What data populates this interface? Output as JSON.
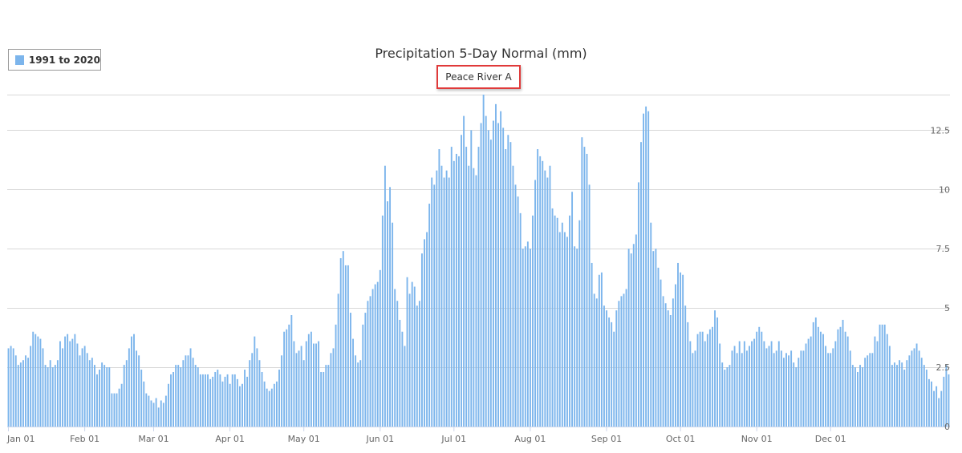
{
  "chart_data": {
    "type": "bar",
    "title": "Precipitation 5-Day Normal (mm)",
    "subtitle": "Peace River A",
    "legend": {
      "position": "top-left",
      "entries": [
        "1991 to 2020"
      ]
    },
    "xlabel": "",
    "ylabel": "",
    "grid": true,
    "ylim": [
      0,
      14
    ],
    "yticks": [
      0,
      2.5,
      5,
      7.5,
      10,
      12.5
    ],
    "ytick_labels": [
      "0",
      "2.5",
      "5",
      "7.5",
      "10",
      "12.5"
    ],
    "xticks": [
      "Jan 01",
      "Feb 01",
      "Mar 01",
      "Apr 01",
      "May 01",
      "Jun 01",
      "Jul 01",
      "Aug 01",
      "Sep 01",
      "Oct 01",
      "Nov 01",
      "Dec 01"
    ],
    "series": [
      {
        "name": "1991 to 2020",
        "color": "#7cb5ec",
        "values": [
          3.3,
          3.4,
          3.3,
          3.0,
          2.6,
          2.7,
          2.8,
          3.0,
          2.9,
          3.4,
          4.0,
          3.9,
          3.8,
          3.7,
          3.3,
          2.6,
          2.5,
          2.8,
          2.5,
          2.6,
          2.8,
          3.6,
          3.3,
          3.8,
          3.9,
          3.6,
          3.7,
          3.9,
          3.5,
          3.0,
          3.3,
          3.4,
          3.1,
          2.8,
          2.9,
          2.6,
          2.2,
          2.4,
          2.7,
          2.6,
          2.5,
          2.5,
          1.4,
          1.4,
          1.4,
          1.6,
          1.8,
          2.6,
          2.8,
          3.3,
          3.8,
          3.9,
          3.2,
          3.0,
          2.4,
          1.9,
          1.4,
          1.3,
          1.1,
          1.0,
          1.2,
          0.8,
          1.1,
          1.0,
          1.3,
          1.8,
          2.2,
          2.3,
          2.6,
          2.6,
          2.5,
          2.8,
          3.0,
          3.0,
          3.3,
          2.9,
          2.6,
          2.5,
          2.2,
          2.2,
          2.2,
          2.2,
          2.0,
          2.1,
          2.3,
          2.4,
          2.2,
          1.9,
          2.1,
          2.2,
          1.8,
          2.2,
          2.2,
          2.0,
          1.7,
          1.8,
          2.4,
          2.1,
          2.8,
          3.1,
          3.8,
          3.3,
          2.8,
          2.3,
          1.9,
          1.6,
          1.5,
          1.6,
          1.8,
          1.9,
          2.4,
          3.0,
          4.0,
          4.1,
          4.3,
          4.7,
          3.6,
          3.1,
          3.2,
          3.4,
          2.8,
          3.6,
          3.9,
          4.0,
          3.5,
          3.5,
          3.6,
          2.3,
          2.3,
          2.6,
          2.6,
          3.1,
          3.3,
          4.3,
          5.6,
          7.1,
          7.4,
          6.8,
          6.8,
          4.8,
          3.7,
          3.0,
          2.7,
          2.8,
          4.3,
          4.8,
          5.3,
          5.5,
          5.8,
          6.0,
          6.1,
          6.6,
          8.9,
          11.0,
          9.5,
          10.1,
          8.6,
          5.8,
          5.3,
          4.5,
          4.0,
          3.4,
          6.3,
          5.6,
          6.1,
          5.9,
          5.1,
          5.3,
          7.3,
          7.9,
          8.2,
          9.4,
          10.5,
          10.2,
          10.8,
          11.7,
          11.0,
          10.5,
          10.8,
          10.5,
          11.8,
          11.2,
          11.5,
          11.4,
          12.3,
          13.1,
          11.8,
          11.0,
          12.5,
          10.9,
          10.6,
          11.8,
          12.8,
          14.0,
          13.1,
          12.5,
          12.1,
          12.9,
          13.6,
          12.8,
          13.3,
          12.6,
          11.7,
          12.3,
          12.0,
          11.0,
          10.2,
          9.7,
          9.0,
          7.5,
          7.6,
          7.8,
          7.5,
          8.9,
          10.4,
          11.7,
          11.4,
          11.2,
          10.8,
          10.5,
          11.0,
          9.2,
          8.9,
          8.8,
          8.2,
          8.6,
          8.2,
          8.0,
          8.9,
          9.9,
          7.6,
          7.5,
          8.7,
          12.2,
          11.8,
          11.5,
          10.2,
          6.9,
          5.6,
          5.4,
          6.4,
          6.5,
          5.1,
          4.9,
          4.6,
          4.4,
          4.0,
          4.9,
          5.3,
          5.5,
          5.6,
          5.8,
          7.5,
          7.3,
          7.7,
          8.1,
          10.3,
          12.0,
          13.2,
          13.5,
          13.3,
          8.6,
          7.4,
          7.5,
          6.7,
          6.2,
          5.5,
          5.2,
          4.9,
          4.7,
          5.4,
          6.0,
          6.9,
          6.5,
          6.4,
          5.1,
          4.4,
          3.6,
          3.1,
          3.2,
          3.9,
          4.0,
          4.0,
          3.6,
          3.9,
          4.1,
          4.2,
          4.9,
          4.6,
          3.5,
          2.7,
          2.4,
          2.5,
          2.6,
          3.2,
          3.4,
          3.1,
          3.6,
          3.1,
          3.6,
          3.2,
          3.4,
          3.6,
          3.7,
          4.0,
          4.2,
          4.0,
          3.6,
          3.3,
          3.4,
          3.6,
          3.1,
          3.2,
          3.6,
          3.2,
          2.9,
          3.1,
          3.0,
          3.2,
          2.7,
          2.5,
          2.9,
          3.2,
          3.2,
          3.5,
          3.7,
          3.8,
          4.4,
          4.6,
          4.2,
          4.0,
          3.9,
          3.4,
          3.1,
          3.1,
          3.3,
          3.6,
          4.1,
          4.2,
          4.5,
          4.0,
          3.8,
          3.2,
          2.6,
          2.5,
          2.3,
          2.6,
          2.5,
          2.9,
          3.0,
          3.1,
          3.1,
          3.8,
          3.6,
          4.3,
          4.3,
          4.3,
          3.9,
          3.4,
          2.6,
          2.7,
          2.6,
          2.8,
          2.7,
          2.4,
          2.8,
          3.0,
          3.2,
          3.3,
          3.5,
          3.2,
          2.9,
          2.6,
          2.4,
          2.0,
          1.9,
          1.5,
          1.7,
          1.2,
          1.5,
          2.1,
          2.6,
          2.2
        ]
      }
    ]
  }
}
